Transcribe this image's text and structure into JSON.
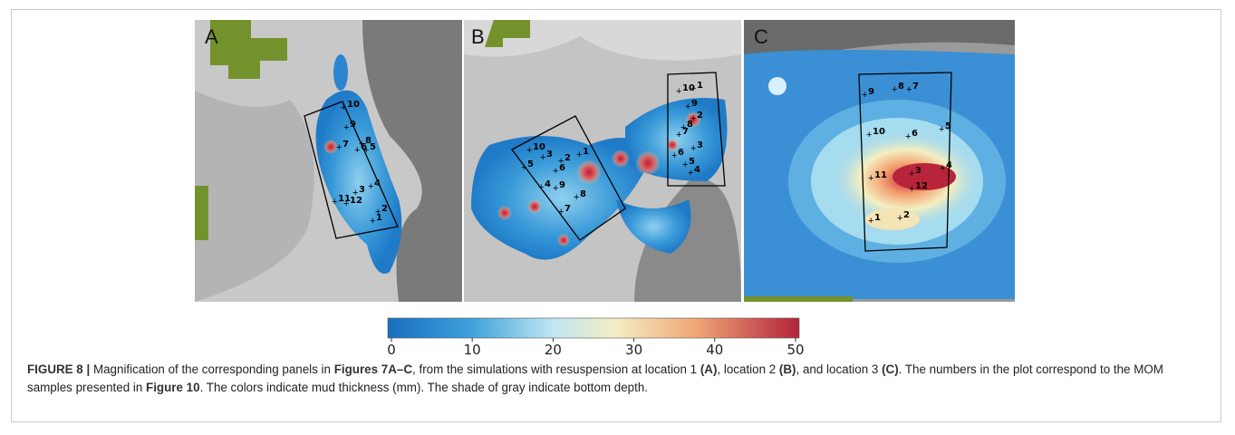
{
  "panels": [
    {
      "label": "A",
      "samples": [
        10,
        9,
        7,
        8,
        6,
        5,
        4,
        3,
        11,
        12,
        2,
        1
      ]
    },
    {
      "label": "B",
      "samples": [
        10,
        5,
        3,
        2,
        1,
        6,
        4,
        9,
        8,
        7,
        10,
        1,
        9,
        2,
        8,
        7,
        3,
        6,
        5,
        4
      ]
    },
    {
      "label": "C",
      "samples": [
        9,
        8,
        7,
        10,
        6,
        5,
        11,
        3,
        12,
        4,
        1,
        2
      ]
    }
  ],
  "colorbar": {
    "lim": [
      0,
      50
    ],
    "ticks": [
      0,
      10,
      20,
      30,
      40,
      50
    ]
  },
  "caption": [
    {
      "text": "FIGURE 8 |",
      "bold": true
    },
    {
      "text": " Magnification of the corresponding panels in ",
      "bold": false
    },
    {
      "text": "Figures 7A–C",
      "bold": true
    },
    {
      "text": ", from the simulations with resuspension at location 1 ",
      "bold": false
    },
    {
      "text": "(A)",
      "bold": true
    },
    {
      "text": ", location 2 ",
      "bold": false
    },
    {
      "text": "(B)",
      "bold": true
    },
    {
      "text": ", and location 3 ",
      "bold": false
    },
    {
      "text": "(C)",
      "bold": true
    },
    {
      "text": ". The numbers in the plot correspond to the MOM samples presented in ",
      "bold": false
    },
    {
      "text": "Figure 10",
      "bold": true
    },
    {
      "text": ". The colors indicate mud thickness (mm). The shade of gray indicate bottom depth.",
      "bold": false
    }
  ]
}
